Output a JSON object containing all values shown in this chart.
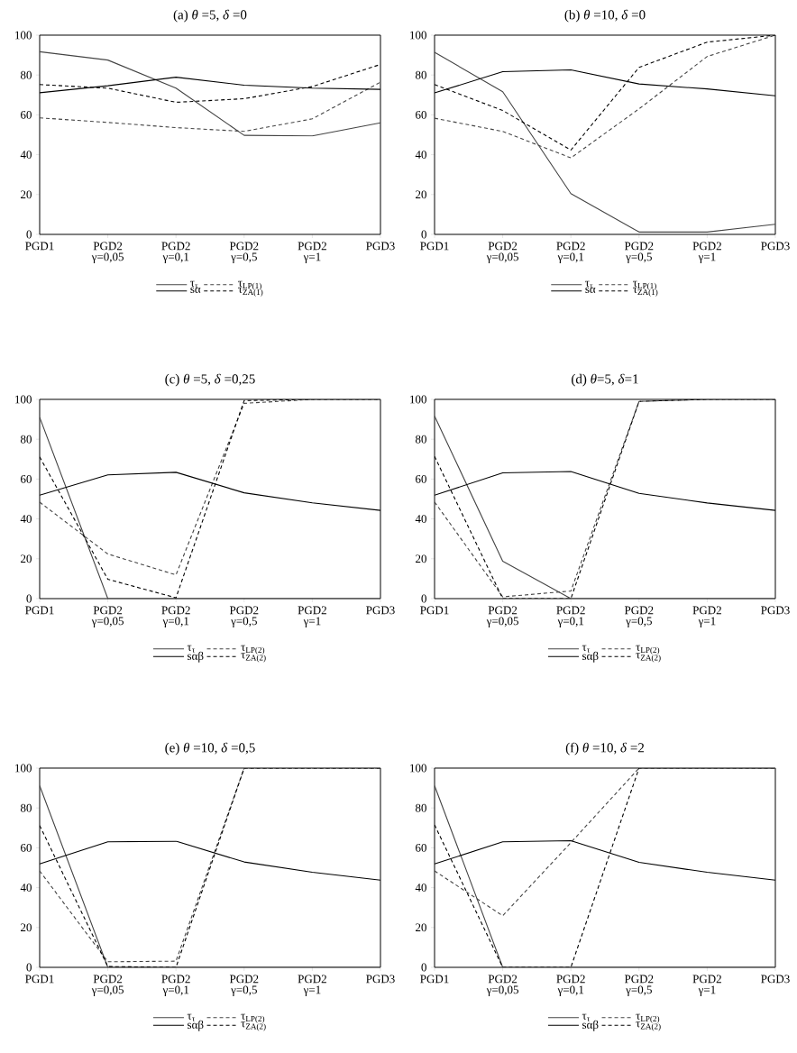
{
  "chart_data": [
    {
      "type": "line",
      "title": "(a) *θ* =5, *δ* =0",
      "categories": [
        "PGD1",
        "PGD2 γ=0,05",
        "PGD2 γ=0,1",
        "PGD2 γ=0,5",
        "PGD2 γ=1",
        "PGD3"
      ],
      "ylim": [
        0,
        100
      ],
      "yticks": [
        0,
        20,
        40,
        60,
        80,
        100
      ],
      "legend": "bottom",
      "series": [
        {
          "name": "τ$_{τ}$",
          "color": "#444444",
          "line_style": "solid",
          "values": [
            91.7,
            87.5,
            73.4,
            49.7,
            49.4,
            56.0
          ]
        },
        {
          "name": "τ$_{LP(1)}$",
          "color": "#444444",
          "line_style": "dashed",
          "values": [
            58.5,
            56.2,
            53.6,
            51.7,
            58.0,
            76.4
          ]
        },
        {
          "name": "sα",
          "color": "#000000",
          "line_style": "solid",
          "values": [
            71.1,
            74.6,
            78.9,
            74.9,
            73.4,
            72.8
          ]
        },
        {
          "name": "τ$_{ZA(1)}$",
          "color": "#000000",
          "line_style": "dashed",
          "values": [
            75.2,
            73.4,
            66.3,
            68.1,
            74.2,
            85.3
          ]
        }
      ]
    },
    {
      "type": "line",
      "title": "(b) *θ* =10, *δ* =0",
      "categories": [
        "PGD1",
        "PGD2 γ=0,05",
        "PGD2 γ=0,1",
        "PGD2 γ=0,5",
        "PGD2 γ=1",
        "PGD3"
      ],
      "ylim": [
        0,
        100
      ],
      "yticks": [
        0,
        20,
        40,
        60,
        80,
        100
      ],
      "legend": "bottom",
      "series": [
        {
          "name": "τ$_{τ}$",
          "color": "#444444",
          "line_style": "solid",
          "values": [
            91.4,
            71.6,
            20.5,
            1.2,
            1.2,
            5.1
          ]
        },
        {
          "name": "τ$_{LP(1)}$",
          "color": "#444444",
          "line_style": "dashed",
          "values": [
            58.3,
            51.7,
            38.4,
            63.0,
            89.3,
            100
          ]
        },
        {
          "name": "sα",
          "color": "#000000",
          "line_style": "solid",
          "values": [
            71.0,
            81.7,
            82.6,
            75.5,
            73.0,
            69.6
          ]
        },
        {
          "name": "τ$_{ZA(1)}$",
          "color": "#000000",
          "line_style": "dashed",
          "values": [
            75.2,
            62.2,
            42.3,
            83.8,
            96.5,
            100
          ]
        }
      ]
    },
    {
      "type": "line",
      "title": "(c) *θ* =5, *δ* =0,25",
      "categories": [
        "PGD1",
        "PGD2 γ=0,05",
        "PGD2 γ=0,1",
        "PGD2 γ=0,5",
        "PGD2 γ=1",
        "PGD3"
      ],
      "ylim": [
        0,
        100
      ],
      "yticks": [
        0,
        20,
        40,
        60,
        80,
        100
      ],
      "legend": "bottom",
      "series": [
        {
          "name": "τ$_{τ}$",
          "color": "#444444",
          "line_style": "solid",
          "values": [
            91.0,
            0,
            0,
            0,
            0,
            0
          ]
        },
        {
          "name": "τ$_{LP(2)}$",
          "color": "#444444",
          "line_style": "dashed",
          "values": [
            48.4,
            22.4,
            11.9,
            98.0,
            100,
            100
          ]
        },
        {
          "name": "sαβ",
          "color": "#000000",
          "line_style": "solid",
          "values": [
            51.9,
            62.1,
            63.4,
            53.1,
            48.1,
            44.3
          ]
        },
        {
          "name": "τ$_{ZA(2)}$",
          "color": "#000000",
          "line_style": "dashed",
          "values": [
            71.1,
            9.7,
            0.4,
            99.4,
            100,
            100
          ]
        }
      ]
    },
    {
      "type": "line",
      "title": "(d) *θ*=5, *δ*=1",
      "categories": [
        "PGD1",
        "PGD2 γ=0,05",
        "PGD2 γ=0,1",
        "PGD2 γ=0,5",
        "PGD2 γ=1",
        "PGD3"
      ],
      "ylim": [
        0,
        100
      ],
      "yticks": [
        0,
        20,
        40,
        60,
        80,
        100
      ],
      "legend": "bottom",
      "series": [
        {
          "name": "τ$_{τ}$",
          "color": "#444444",
          "line_style": "solid",
          "values": [
            91.6,
            18.8,
            0,
            0,
            0,
            0
          ]
        },
        {
          "name": "τ$_{LP(2)}$",
          "color": "#444444",
          "line_style": "dashed",
          "values": [
            48.5,
            0.9,
            3.8,
            99,
            100,
            100
          ]
        },
        {
          "name": "sαβ",
          "color": "#000000",
          "line_style": "solid",
          "values": [
            51.9,
            63.1,
            63.8,
            52.8,
            48.0,
            44.3
          ]
        },
        {
          "name": "τ$_{ZA(2)}$",
          "color": "#000000",
          "line_style": "dashed",
          "values": [
            71.4,
            0,
            0,
            99,
            100,
            100
          ]
        }
      ]
    },
    {
      "type": "line",
      "title": "(e) *θ* =10, *δ* =0,5",
      "categories": [
        "PGD1",
        "PGD2 γ=0,05",
        "PGD2 γ=0,1",
        "PGD2 γ=0,5",
        "PGD2 γ=1",
        "PGD3"
      ],
      "ylim": [
        0,
        100
      ],
      "yticks": [
        0,
        20,
        40,
        60,
        80,
        100
      ],
      "legend": "bottom",
      "series": [
        {
          "name": "τ$_{τ}$",
          "color": "#444444",
          "line_style": "solid",
          "values": [
            91.2,
            0,
            0,
            0,
            0,
            0
          ]
        },
        {
          "name": "τ$_{LP(2)}$",
          "color": "#444444",
          "line_style": "dashed",
          "values": [
            48.4,
            2.8,
            3.1,
            100,
            100,
            100
          ]
        },
        {
          "name": "sαβ",
          "color": "#000000",
          "line_style": "solid",
          "values": [
            51.9,
            63.0,
            63.3,
            52.9,
            47.7,
            43.8
          ]
        },
        {
          "name": "τ$_{ZA(2)}$",
          "color": "#000000",
          "line_style": "dashed",
          "values": [
            71.2,
            0.4,
            0,
            100,
            100,
            100
          ]
        }
      ]
    },
    {
      "type": "line",
      "title": "(f) *θ* =10, *δ* =2",
      "categories": [
        "PGD1",
        "PGD2 γ=0,05",
        "PGD2 γ=0,1",
        "PGD2 γ=0,5",
        "PGD2 γ=1",
        "PGD3"
      ],
      "ylim": [
        0,
        100
      ],
      "yticks": [
        0,
        20,
        40,
        60,
        80,
        100
      ],
      "legend": "bottom",
      "series": [
        {
          "name": "τ$_{τ}$",
          "color": "#444444",
          "line_style": "solid",
          "values": [
            91.2,
            0,
            0,
            0,
            0,
            0
          ]
        },
        {
          "name": "τ$_{LP(2)}$",
          "color": "#444444",
          "line_style": "dashed",
          "values": [
            48.4,
            25.9,
            62.6,
            100,
            100,
            100
          ]
        },
        {
          "name": "sαβ",
          "color": "#000000",
          "line_style": "solid",
          "values": [
            51.9,
            63.0,
            63.6,
            52.7,
            47.7,
            43.8
          ]
        },
        {
          "name": "τ$_{ZA(2)}$",
          "color": "#000000",
          "line_style": "dashed",
          "values": [
            71.5,
            0,
            0,
            100,
            100,
            100
          ]
        }
      ]
    }
  ]
}
